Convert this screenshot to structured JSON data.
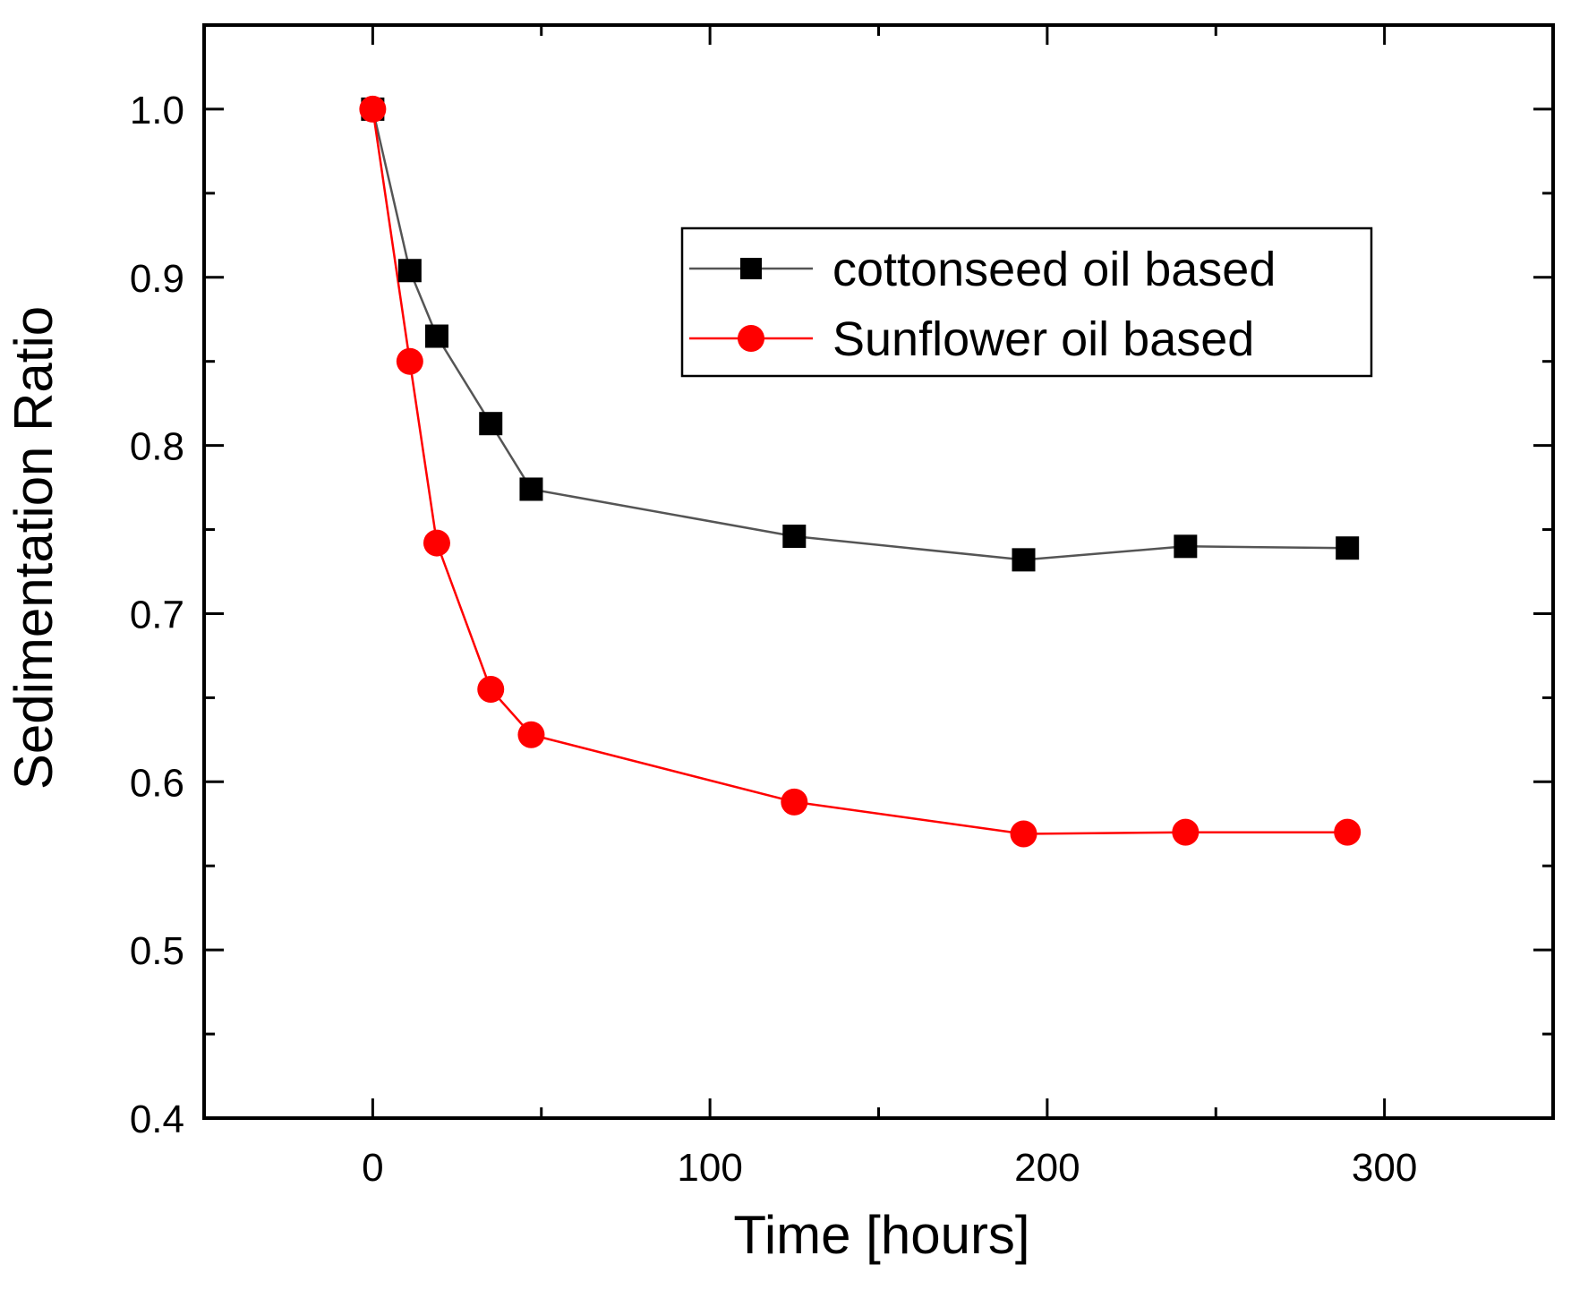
{
  "chart_data": {
    "type": "line",
    "title": "",
    "xlabel": "Time [hours]",
    "ylabel": "Sedimentation Ratio",
    "xlim": [
      -50,
      350
    ],
    "ylim": [
      0.4,
      1.05
    ],
    "xticks": [
      0,
      100,
      200,
      300
    ],
    "xtick_labels": [
      "0",
      "100",
      "200",
      "300"
    ],
    "yticks": [
      0.4,
      0.5,
      0.6,
      0.7,
      0.8,
      0.9,
      1.0
    ],
    "ytick_labels": [
      "0.4",
      "0.5",
      "0.6",
      "0.7",
      "0.8",
      "0.9",
      "1.0"
    ],
    "x_minor_step": 50,
    "y_minor_step": 0.05,
    "grid": false,
    "legend_position": "top-right",
    "series": [
      {
        "name": "cottonseed oil based",
        "marker": "square",
        "line_color": "#555555",
        "marker_color": "#000000",
        "x": [
          0,
          11,
          19,
          35,
          47,
          125,
          193,
          241,
          289
        ],
        "y": [
          1.0,
          0.904,
          0.865,
          0.813,
          0.774,
          0.746,
          0.732,
          0.74,
          0.739
        ]
      },
      {
        "name": "Sunflower oil based",
        "marker": "circle",
        "line_color": "#ff0000",
        "marker_color": "#ff0000",
        "x": [
          0,
          11,
          19,
          35,
          47,
          125,
          193,
          241,
          289
        ],
        "y": [
          1.0,
          0.85,
          0.742,
          0.655,
          0.628,
          0.588,
          0.569,
          0.57,
          0.57
        ]
      }
    ]
  }
}
